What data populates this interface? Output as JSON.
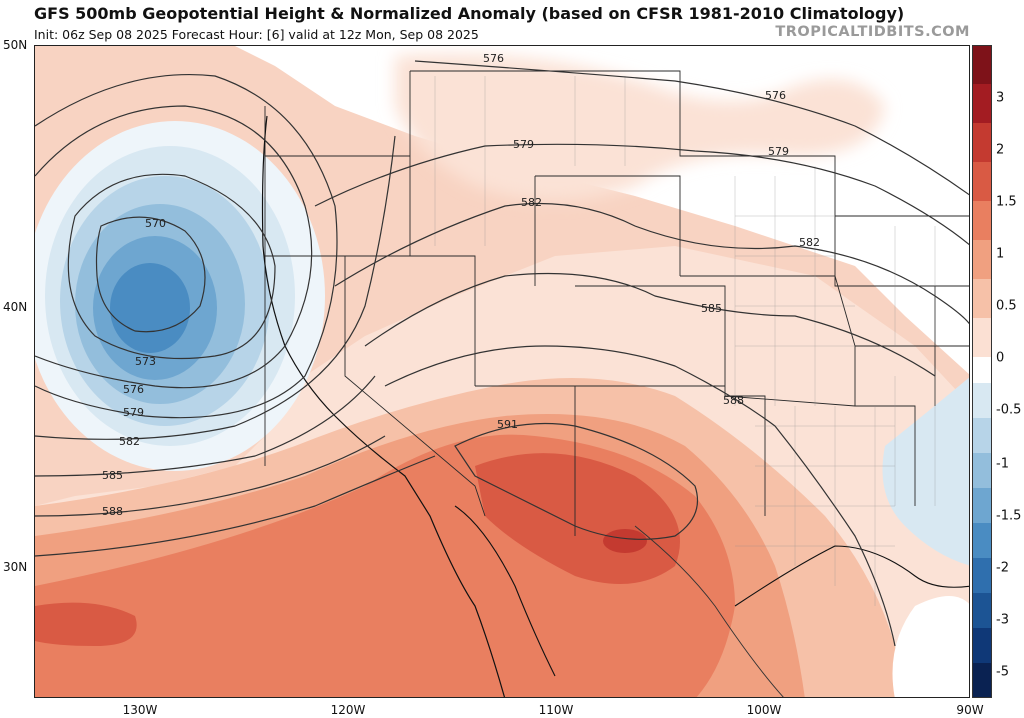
{
  "header": {
    "title": "GFS 500mb Geopotential Height & Normalized Anomaly (based on CFSR 1981-2010 Climatology)",
    "subtitle": "Init: 06z Sep 08 2025   Forecast Hour: [6]   valid at 12z Mon, Sep 08 2025",
    "credit": "TROPICALTIDBITS.COM"
  },
  "axes": {
    "lat_labels": [
      "50N",
      "40N",
      "30N"
    ],
    "lon_labels": [
      "130W",
      "120W",
      "110W",
      "100W",
      "90W"
    ]
  },
  "colorbar": {
    "labels": [
      "3",
      "2",
      "1.5",
      "1",
      "0.5",
      "0",
      "-0.5",
      "-1",
      "-1.5",
      "-2",
      "-3",
      "-5"
    ],
    "colors": {
      "pos": [
        "#7e1219",
        "#a31c22",
        "#c43a30",
        "#d95a44",
        "#e97f60",
        "#f0a080",
        "#f6c1a8",
        "#fbe0d3"
      ],
      "neg": [
        "#d8e8f2",
        "#b7d4e8",
        "#93bedc",
        "#6ea6d0",
        "#4a8cc2",
        "#2f6fae",
        "#1c5494",
        "#0f3877",
        "#0a2252"
      ]
    }
  },
  "contours": {
    "labels": [
      "576",
      "576",
      "579",
      "579",
      "582",
      "582",
      "585",
      "588",
      "591",
      "570",
      "573",
      "576",
      "579",
      "582",
      "585",
      "588"
    ]
  }
}
